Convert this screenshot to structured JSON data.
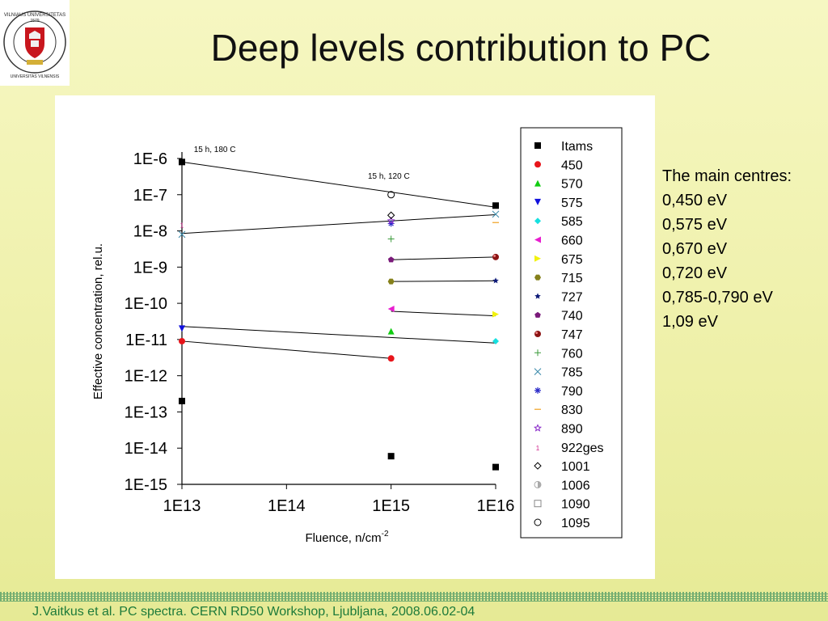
{
  "title": "Deep levels contribution to PC",
  "logo": {
    "icon": "university-seal-icon",
    "text_top": "VILNIAUS UNIVERSITETAS",
    "text_year": "1579",
    "text_bottom": "UNIVERSITAS VILNENSIS"
  },
  "side_notes": {
    "heading": "The main centres:",
    "items": [
      "0,450 eV",
      "0,575 eV",
      "0,670 eV",
      "0,720 eV",
      "0,785-0,790 eV",
      "1,09   eV"
    ]
  },
  "footer": "J.Vaitkus et al. PC spectra. CERN RD50 Workshop, Ljubljana, 2008.06.02-04",
  "chart_data": {
    "type": "scatter",
    "x_scale": "log",
    "y_scale": "log",
    "xlabel": "Fluence, n/cm",
    "xlabel_sup": "-2",
    "ylabel": "Effective concentration, rel.u.",
    "xlim": [
      10000000000000.0,
      1e+16
    ],
    "ylim": [
      1e-15,
      1e-06
    ],
    "x_ticks": [
      "1E13",
      "1E14",
      "1E15",
      "1E16"
    ],
    "y_ticks": [
      "1E-6",
      "1E-7",
      "1E-8",
      "1E-9",
      "1E-10",
      "1E-11",
      "1E-12",
      "1E-13",
      "1E-14",
      "1E-15"
    ],
    "annotations": [
      {
        "text": "15 h, 180 C",
        "x": 13000000000000.0,
        "y": 1.5e-06
      },
      {
        "text": "15 h, 120 C",
        "x": 600000000000000.0,
        "y": 2.8e-07
      }
    ],
    "legend_position": "right",
    "series": [
      {
        "name": "Itams",
        "marker": "square",
        "color": "#000000",
        "points": [
          [
            10000000000000.0,
            8e-07
          ],
          [
            10000000000000.0,
            2e-13
          ],
          [
            1000000000000000.0,
            6e-15
          ],
          [
            1e+16,
            5e-08
          ],
          [
            1e+16,
            3e-15
          ]
        ]
      },
      {
        "name": "450",
        "marker": "circle-filled",
        "color": "#e8151b",
        "points": [
          [
            10000000000000.0,
            9e-12
          ],
          [
            1000000000000000.0,
            3e-12
          ]
        ]
      },
      {
        "name": "570",
        "marker": "triangle-up",
        "color": "#11cc11",
        "points": [
          [
            1000000000000000.0,
            1.7e-11
          ]
        ]
      },
      {
        "name": "575",
        "marker": "triangle-down",
        "color": "#1111dd",
        "points": [
          [
            10000000000000.0,
            2e-11
          ]
        ]
      },
      {
        "name": "585",
        "marker": "diamond",
        "color": "#16e0e0",
        "points": [
          [
            1e+16,
            9e-12
          ]
        ]
      },
      {
        "name": "660",
        "marker": "triangle-left",
        "color": "#e81ecf",
        "points": [
          [
            1000000000000000.0,
            7e-11
          ]
        ]
      },
      {
        "name": "675",
        "marker": "triangle-right",
        "color": "#f2f20e",
        "points": [
          [
            1e+16,
            5e-11
          ]
        ]
      },
      {
        "name": "715",
        "marker": "hexagon",
        "color": "#85801a",
        "points": [
          [
            1000000000000000.0,
            4e-10
          ]
        ]
      },
      {
        "name": "727",
        "marker": "star",
        "color": "#0d1a78",
        "points": [
          [
            1e+16,
            4.2e-10
          ]
        ]
      },
      {
        "name": "740",
        "marker": "pentagon",
        "color": "#7a1a7a",
        "points": [
          [
            1000000000000000.0,
            1.6e-09
          ]
        ]
      },
      {
        "name": "747",
        "marker": "sphere",
        "color": "#8c1414",
        "points": [
          [
            1e+16,
            1.9e-09
          ]
        ]
      },
      {
        "name": "760",
        "marker": "plus",
        "color": "#3a9a3a",
        "points": [
          [
            1000000000000000.0,
            6e-09
          ]
        ]
      },
      {
        "name": "785",
        "marker": "x",
        "color": "#3a8aaa",
        "points": [
          [
            10000000000000.0,
            8e-09
          ],
          [
            1e+16,
            2.9e-08
          ]
        ]
      },
      {
        "name": "790",
        "marker": "asterisk",
        "color": "#2a2ac8",
        "points": [
          [
            1000000000000000.0,
            1.6e-08
          ]
        ]
      },
      {
        "name": "830",
        "marker": "dash",
        "color": "#f0a020",
        "points": [
          [
            1e+16,
            1.7e-08
          ]
        ]
      },
      {
        "name": "890",
        "marker": "star-outline",
        "color": "#8a2aca",
        "points": [
          [
            1000000000000000.0,
            1.9e-08
          ]
        ]
      },
      {
        "name": "922ges",
        "marker": "one",
        "color": "#d0208a",
        "points": [
          [
            10000000000000.0,
            1.5e-08
          ]
        ]
      },
      {
        "name": "1001",
        "marker": "diamond-open",
        "color": "#000000",
        "points": [
          [
            1000000000000000.0,
            2.7e-08
          ]
        ]
      },
      {
        "name": "1006",
        "marker": "circle-half",
        "color": "#aaaaaa",
        "points": []
      },
      {
        "name": "1090",
        "marker": "square-open",
        "color": "#888888",
        "points": []
      },
      {
        "name": "1095",
        "marker": "circle-open",
        "color": "#000000",
        "points": [
          [
            1000000000000000.0,
            1e-07
          ]
        ]
      }
    ],
    "lines": [
      [
        [
          10000000000000.0,
          8e-07
        ],
        [
          1e+16,
          4.5e-08
        ]
      ],
      [
        [
          10000000000000.0,
          8.5e-09
        ],
        [
          1e+16,
          2.8e-08
        ]
      ],
      [
        [
          1000000000000000.0,
          1.6e-09
        ],
        [
          1e+16,
          1.9e-09
        ]
      ],
      [
        [
          1000000000000000.0,
          4e-10
        ],
        [
          1e+16,
          4.2e-10
        ]
      ],
      [
        [
          1000000000000000.0,
          6e-11
        ],
        [
          1e+16,
          4.5e-11
        ]
      ],
      [
        [
          10000000000000.0,
          2.3e-11
        ],
        [
          1e+16,
          8e-12
        ]
      ],
      [
        [
          10000000000000.0,
          9e-12
        ],
        [
          1000000000000000.0,
          3e-12
        ]
      ]
    ]
  }
}
